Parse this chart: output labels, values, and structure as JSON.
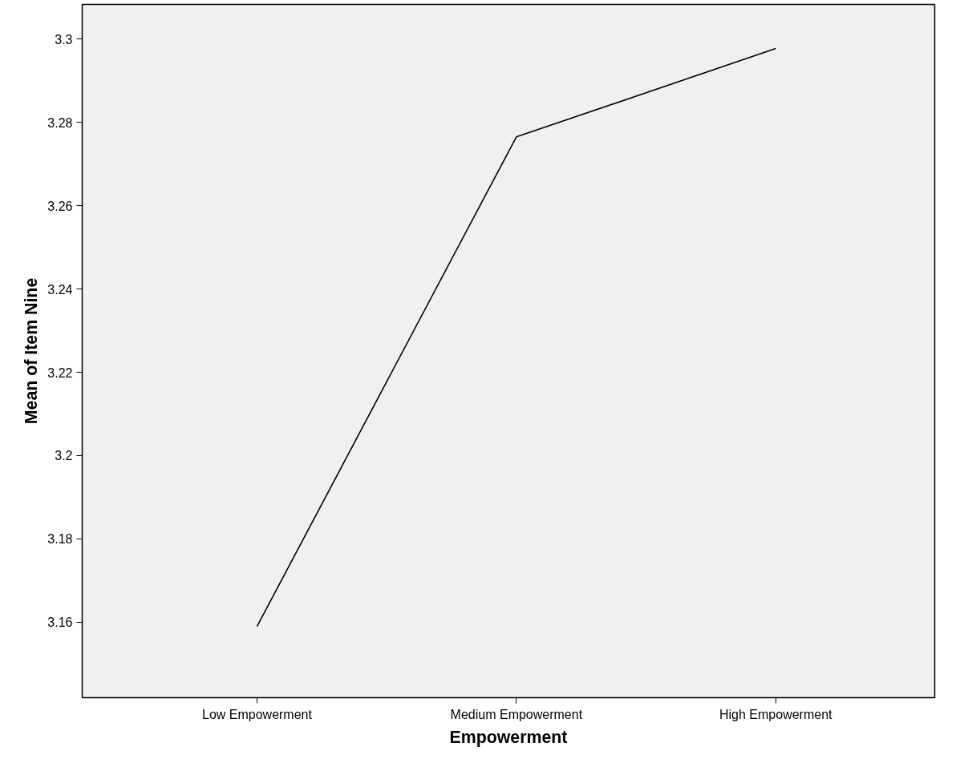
{
  "chart_data": {
    "type": "line",
    "xlabel": "Empowerment",
    "ylabel": "Mean of Item Nine",
    "categories": [
      "Low Empowerment",
      "Medium Empowerment",
      "High Empowerment"
    ],
    "series": [
      {
        "color": "#000000",
        "values": [
          3.159,
          3.2765,
          3.2977
        ]
      }
    ],
    "ylim": [
      3.1419,
      3.3083
    ],
    "yticks": [
      3.16,
      3.18,
      3.2,
      3.22,
      3.24,
      3.26,
      3.28,
      3.3
    ],
    "grid": false,
    "marker": "none",
    "line_style": "solid"
  }
}
